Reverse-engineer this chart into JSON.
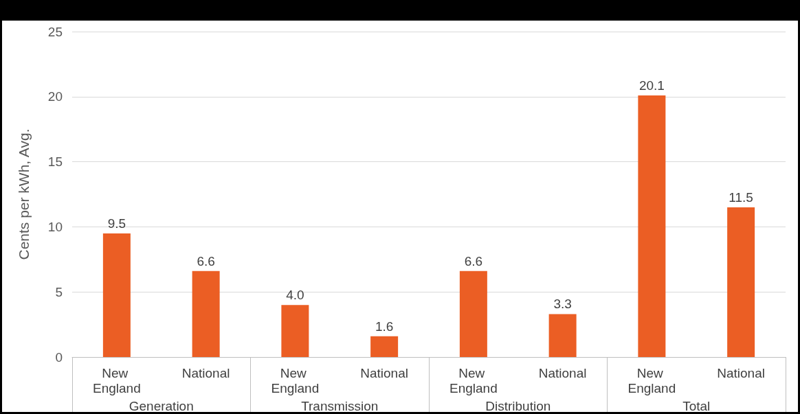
{
  "chart_data": {
    "type": "bar",
    "ylabel": "Cents per kWh, Avg.",
    "categories": [
      "New England",
      "National",
      "New England",
      "National",
      "New England",
      "National",
      "New England",
      "National"
    ],
    "values": [
      9.5,
      6.6,
      4.0,
      1.6,
      6.6,
      3.3,
      20.1,
      11.5
    ],
    "value_labels": [
      "9.5",
      "6.6",
      "4.0",
      "1.6",
      "6.6",
      "3.3",
      "20.1",
      "11.5"
    ],
    "color": "#eb5e24",
    "annotations": [
      "Generation",
      "Transmission",
      "Distribution",
      "Total"
    ],
    "ylim": [
      0,
      25
    ],
    "yticks": [
      0,
      5,
      10,
      15,
      20,
      25
    ],
    "grid": "y"
  }
}
